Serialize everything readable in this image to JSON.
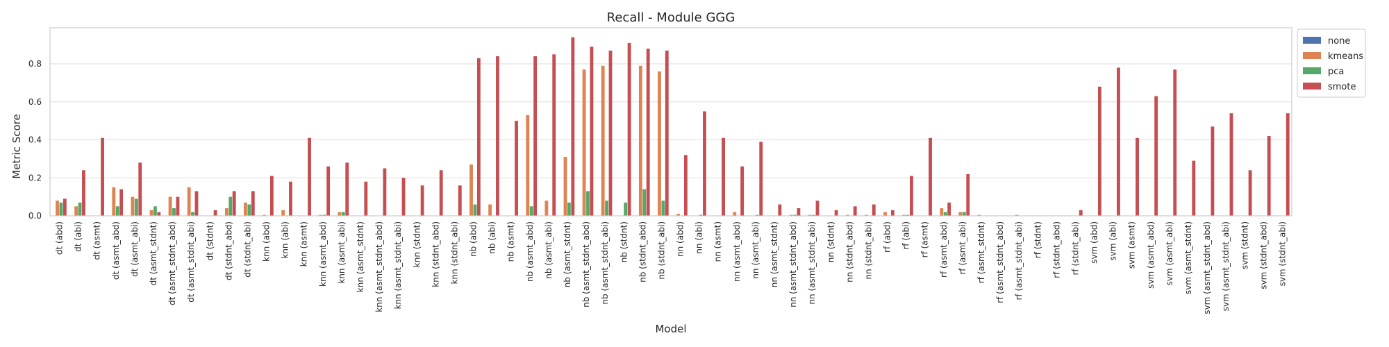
{
  "chart_data": {
    "type": "bar",
    "title": "Recall - Module GGG",
    "xlabel": "Model",
    "ylabel": "Metric Score",
    "ylim": [
      0,
      0.99
    ],
    "yticks": [
      "0.0",
      "0.2",
      "0.4",
      "0.6",
      "0.8"
    ],
    "grid": true,
    "legend_position": "outside-top-right",
    "categories": [
      "dt (abd)",
      "dt (abi)",
      "dt (asmt)",
      "dt (asmt_abd)",
      "dt (asmt_abi)",
      "dt (asmt_stdnt)",
      "dt (asmt_stdnt_abd)",
      "dt (asmt_stdnt_abi)",
      "dt (stdnt)",
      "dt (stdnt_abd)",
      "dt (stdnt_abi)",
      "knn (abd)",
      "knn (abi)",
      "knn (asmt)",
      "knn (asmt_abd)",
      "knn (asmt_abi)",
      "knn (asmt_stdnt)",
      "knn (asmt_stdnt_abd)",
      "knn (asmt_stdnt_abi)",
      "knn (stdnt)",
      "knn (stdnt_abd)",
      "knn (stdnt_abi)",
      "nb (abd)",
      "nb (abi)",
      "nb (asmt)",
      "nb (asmt_abd)",
      "nb (asmt_abi)",
      "nb (asmt_stdnt)",
      "nb (asmt_stdnt_abd)",
      "nb (asmt_stdnt_abi)",
      "nb (stdnt)",
      "nb (stdnt_abd)",
      "nb (stdnt_abi)",
      "nn (abd)",
      "nn (abi)",
      "nn (asmt)",
      "nn (asmt_abd)",
      "nn (asmt_abi)",
      "nn (asmt_stdnt)",
      "nn (asmt_stdnt_abd)",
      "nn (asmt_stdnt_abi)",
      "nn (stdnt)",
      "nn (stdnt_abd)",
      "nn (stdnt_abi)",
      "rf (abd)",
      "rf (abi)",
      "rf (asmt)",
      "rf (asmt_abd)",
      "rf (asmt_abi)",
      "rf (asmt_stdnt)",
      "rf (asmt_stdnt_abd)",
      "rf (asmt_stdnt_abi)",
      "rf (stdnt)",
      "rf (stdnt_abd)",
      "rf (stdnt_abi)",
      "svm (abd)",
      "svm (abi)",
      "svm (asmt)",
      "svm (asmt_abd)",
      "svm (asmt_abi)",
      "svm (asmt_stdnt)",
      "svm (asmt_stdnt_abd)",
      "svm (asmt_stdnt_abi)",
      "svm (stdnt)",
      "svm (stdnt_abd)",
      "svm (stdnt_abi)"
    ],
    "series": [
      {
        "name": "none",
        "color": "#4c72b0",
        "values": [
          0.0,
          0.0,
          0.0,
          0.0,
          0.0,
          0.0,
          0.0,
          0.0,
          0.0,
          0.0,
          0.0,
          0.0,
          0.0,
          0.0,
          0.0,
          0.0,
          0.0,
          0.0,
          0.0,
          0.0,
          0.0,
          0.0,
          0.0,
          0.0,
          0.0,
          0.0,
          0.0,
          0.0,
          0.0,
          0.0,
          0.0,
          0.0,
          0.0,
          0.0,
          0.0,
          0.0,
          0.0,
          0.0,
          0.0,
          0.0,
          0.0,
          0.0,
          0.0,
          0.0,
          0.0,
          0.0,
          0.0,
          0.0,
          0.0,
          0.0,
          0.0,
          0.0,
          0.0,
          0.0,
          0.0,
          0.0,
          0.0,
          0.0,
          0.0,
          0.0,
          0.0,
          0.0,
          0.0,
          0.0,
          0.0,
          0.0
        ]
      },
      {
        "name": "kmeans",
        "color": "#dd8452",
        "values": [
          0.08,
          0.05,
          0.0,
          0.15,
          0.1,
          0.03,
          0.1,
          0.15,
          0.0,
          0.04,
          0.07,
          0.005,
          0.03,
          0.0,
          0.005,
          0.02,
          0.0,
          0.0,
          0.0,
          0.0,
          0.0,
          0.0,
          0.27,
          0.06,
          0.0,
          0.53,
          0.08,
          0.31,
          0.77,
          0.79,
          0.0,
          0.79,
          0.76,
          0.01,
          0.0,
          0.0,
          0.02,
          0.0,
          0.0,
          0.005,
          0.005,
          0.0,
          0.005,
          0.005,
          0.02,
          0.005,
          0.0,
          0.04,
          0.02,
          0.005,
          0.0,
          0.005,
          0.0,
          0.0,
          0.0,
          0.0,
          0.0,
          0.0,
          0.0,
          0.0,
          0.0,
          0.0,
          0.0,
          0.0,
          0.0,
          0.0
        ]
      },
      {
        "name": "pca",
        "color": "#55a868",
        "values": [
          0.07,
          0.07,
          0.0,
          0.05,
          0.09,
          0.05,
          0.04,
          0.02,
          0.0,
          0.1,
          0.06,
          0.0,
          0.0,
          0.0,
          0.005,
          0.02,
          0.0,
          0.0,
          0.0,
          0.0,
          0.0,
          0.0,
          0.06,
          0.0,
          0.0,
          0.05,
          0.0,
          0.07,
          0.13,
          0.08,
          0.07,
          0.14,
          0.08,
          0.0,
          0.005,
          0.0,
          0.0,
          0.005,
          0.0,
          0.005,
          0.005,
          0.0,
          0.0,
          0.0,
          0.0,
          0.005,
          0.0,
          0.02,
          0.02,
          0.0,
          0.0,
          0.0,
          0.0,
          0.0,
          0.0,
          0.0,
          0.0,
          0.0,
          0.0,
          0.0,
          0.0,
          0.0,
          0.0,
          0.0,
          0.0,
          0.0
        ]
      },
      {
        "name": "smote",
        "color": "#c44e52",
        "values": [
          0.09,
          0.24,
          0.41,
          0.14,
          0.28,
          0.02,
          0.1,
          0.13,
          0.03,
          0.13,
          0.13,
          0.21,
          0.18,
          0.41,
          0.26,
          0.28,
          0.18,
          0.25,
          0.2,
          0.16,
          0.24,
          0.16,
          0.83,
          0.84,
          0.5,
          0.84,
          0.85,
          0.94,
          0.89,
          0.87,
          0.91,
          0.88,
          0.87,
          0.32,
          0.55,
          0.41,
          0.26,
          0.39,
          0.06,
          0.04,
          0.08,
          0.03,
          0.05,
          0.06,
          0.03,
          0.21,
          0.41,
          0.07,
          0.22,
          0.0,
          0.0,
          0.0,
          0.0,
          0.0,
          0.03,
          0.68,
          0.78,
          0.41,
          0.63,
          0.77,
          0.29,
          0.47,
          0.54,
          0.24,
          0.42,
          0.54
        ]
      }
    ]
  }
}
